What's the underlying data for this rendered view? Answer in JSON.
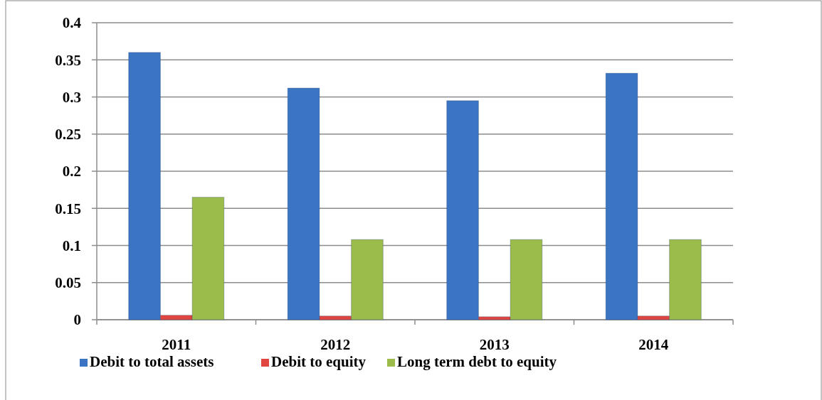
{
  "chart_data": {
    "type": "bar",
    "categories": [
      "2011",
      "2012",
      "2013",
      "2014"
    ],
    "series": [
      {
        "name": "Debit to total assets",
        "color": "#3a74c2",
        "values": [
          0.36,
          0.312,
          0.295,
          0.332
        ]
      },
      {
        "name": "Debit to equity",
        "color": "#e0463f",
        "values": [
          0.006,
          0.005,
          0.004,
          0.005
        ]
      },
      {
        "name": "Long term debt to equity",
        "color": "#9bbb4a",
        "values": [
          0.165,
          0.108,
          0.108,
          0.108
        ]
      }
    ],
    "ylim": [
      0,
      0.4
    ],
    "yticks": [
      0,
      0.05,
      0.1,
      0.15,
      0.2,
      0.25,
      0.3,
      0.35,
      0.4
    ],
    "grid": "y",
    "legend": "bottom"
  }
}
